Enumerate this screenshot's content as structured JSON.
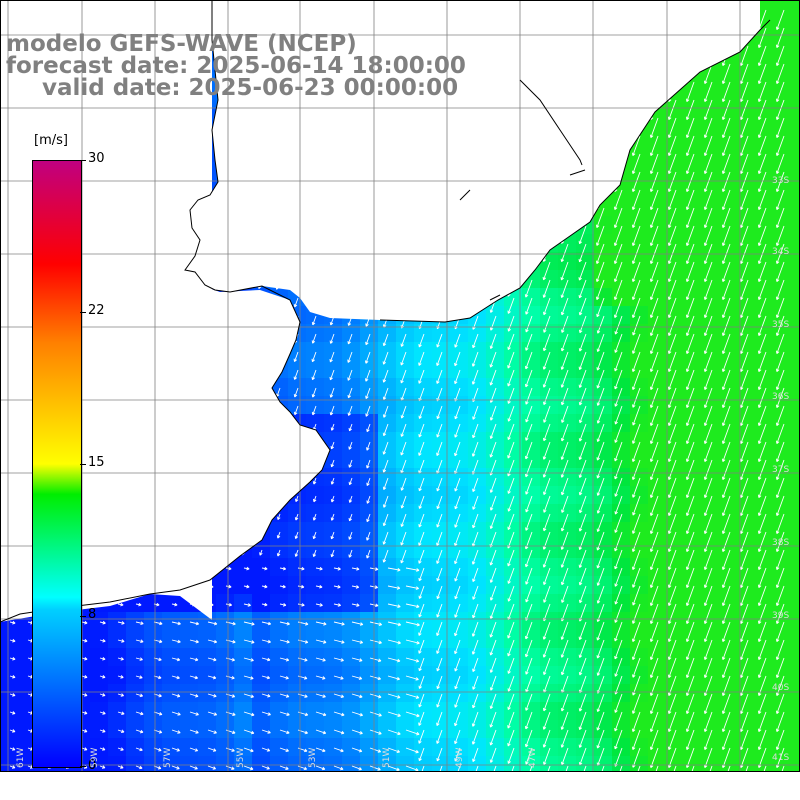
{
  "title_line1": "modelo GEFS-WAVE (NCEP)",
  "title_line2": "forecast date: 2025-06-14 18:00:00",
  "title_line3": "valid date: 2025-06-23 00:00:00",
  "colorbar": {
    "unit": "[m/s]",
    "labels": [
      "30",
      "22",
      "15",
      "8",
      "0"
    ],
    "min": 0,
    "max": 30
  },
  "map": {
    "variable": "wind speed with direction arrows",
    "land_color": "#ffffff",
    "coast_color": "#000000",
    "grid_color": "#808080",
    "lon_labels": [
      "61W",
      "59W",
      "57W",
      "55W",
      "53W",
      "51W",
      "49W",
      "47W"
    ],
    "lat_labels": [
      "33S",
      "34S",
      "35S",
      "36S",
      "37S",
      "38S",
      "39S",
      "40S",
      "41S"
    ]
  }
}
